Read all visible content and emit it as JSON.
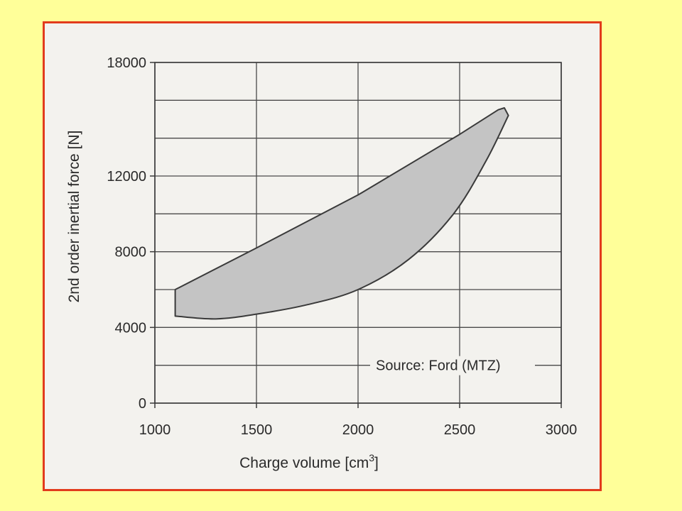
{
  "slide": {
    "background_color": "#ffff99",
    "frame_border_color": "#e23b1c"
  },
  "chart_data": {
    "type": "area",
    "title": "",
    "xlabel": "Charge volume [cm",
    "xlabel_superscript": "3",
    "xlabel_suffix": "]",
    "ylabel": "2nd order inertial force [N]",
    "xlim": [
      1000,
      3000
    ],
    "ylim": [
      0,
      18000
    ],
    "x_ticks": [
      1000,
      1500,
      2000,
      2500,
      3000
    ],
    "y_ticks": [
      0,
      4000,
      8000,
      12000,
      18000
    ],
    "x_tick_labels": [
      "1000",
      "1500",
      "2000",
      "2500",
      "3000"
    ],
    "y_tick_labels": [
      "0",
      "4000",
      "8000",
      "12000",
      "18000"
    ],
    "x_grid": [
      1000,
      1500,
      2000,
      2500,
      3000
    ],
    "y_grid": [
      0,
      2000,
      4000,
      6000,
      8000,
      10000,
      12000,
      14000,
      16000,
      18000
    ],
    "grid": true,
    "annotation": "Source: Ford (MTZ)",
    "fill_color": "#c4c4c4",
    "line_color": "#3a3a3a",
    "series": [
      {
        "upper_boundary": [
          {
            "x": 1100,
            "y": 6000
          },
          {
            "x": 1500,
            "y": 8200
          },
          {
            "x": 2000,
            "y": 11000
          },
          {
            "x": 2500,
            "y": 14200
          },
          {
            "x": 2690,
            "y": 15500
          }
        ],
        "lower_boundary": [
          {
            "x": 1100,
            "y": 4600
          },
          {
            "x": 1300,
            "y": 4450
          },
          {
            "x": 1500,
            "y": 4700
          },
          {
            "x": 1750,
            "y": 5200
          },
          {
            "x": 2000,
            "y": 6000
          },
          {
            "x": 2250,
            "y": 7600
          },
          {
            "x": 2470,
            "y": 10000
          },
          {
            "x": 2630,
            "y": 12800
          },
          {
            "x": 2740,
            "y": 15200
          }
        ],
        "tip": {
          "x": 2720,
          "y": 15600
        }
      }
    ]
  }
}
